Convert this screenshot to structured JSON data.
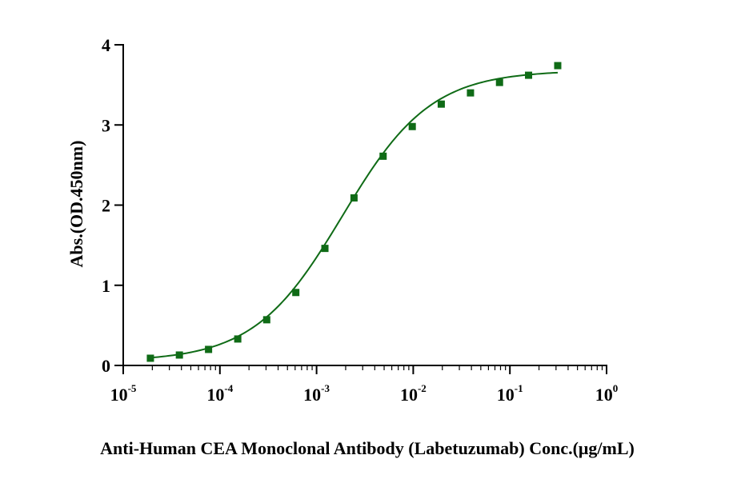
{
  "chart_data": {
    "type": "scatter",
    "title": "",
    "xlabel": "Anti-Human CEA Monoclonal Antibody (Labetuzumab) Conc.(μg/mL)",
    "ylabel": "Abs.(OD.450nm)",
    "xscale": "log",
    "xlim": [
      1e-05,
      1
    ],
    "ylim": [
      0,
      4
    ],
    "grid": false,
    "legend": "none",
    "x_ticks": [
      {
        "value": 1e-05,
        "base": "10",
        "exp": "-5"
      },
      {
        "value": 0.0001,
        "base": "10",
        "exp": "-4"
      },
      {
        "value": 0.001,
        "base": "10",
        "exp": "-3"
      },
      {
        "value": 0.01,
        "base": "10",
        "exp": "-2"
      },
      {
        "value": 0.1,
        "base": "10",
        "exp": "-1"
      },
      {
        "value": 1,
        "base": "10",
        "exp": "0"
      }
    ],
    "y_ticks": [
      0,
      1,
      2,
      3,
      4
    ],
    "series": [
      {
        "color": "#0f6b16",
        "marker": "square",
        "x": [
          1.91e-05,
          3.81e-05,
          7.63e-05,
          0.000153,
          0.000305,
          0.00061,
          0.00122,
          0.00244,
          0.00488,
          0.00977,
          0.0195,
          0.0391,
          0.0781,
          0.156,
          0.3125
        ],
        "y": [
          0.09,
          0.13,
          0.2,
          0.33,
          0.57,
          0.91,
          1.46,
          2.09,
          2.61,
          2.98,
          3.26,
          3.4,
          3.53,
          3.62,
          3.74
        ]
      }
    ],
    "fit": {
      "type": "4PL",
      "color": "#0f6b16",
      "bottom": 0.05,
      "top": 3.68,
      "ec50": 0.00185,
      "hill": 0.95,
      "x_from": 1.91e-05,
      "x_to": 0.3125
    }
  }
}
